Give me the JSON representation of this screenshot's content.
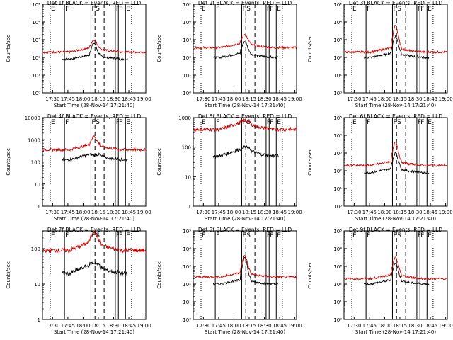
{
  "chart_data": [
    {
      "type": "line",
      "title": "Det 1f BLACK = Events, RED = LLD",
      "xlabel": "Start Time (28-Nov-14 17:21:40)",
      "ylabel": "Counts/sec",
      "ylim_exp": [
        0,
        5
      ],
      "yscale": "log",
      "series": [
        {
          "name": "Events",
          "color": "#000000",
          "base": 1.9,
          "peak": 2.8
        },
        {
          "name": "LLD",
          "color": "#cc0000",
          "base": 2.3,
          "peak": 3.0
        }
      ]
    },
    {
      "type": "line",
      "title": "Det 2f BLACK = Events, RED = LLD",
      "xlabel": "Start Time (28-Nov-14 17:21:40)",
      "ylabel": "Counts/sec",
      "ylim_exp": [
        0,
        5
      ],
      "yscale": "log",
      "series": [
        {
          "name": "Events",
          "color": "#000000",
          "base": 2.0,
          "peak": 2.9
        },
        {
          "name": "LLD",
          "color": "#cc0000",
          "base": 2.55,
          "peak": 3.3
        }
      ]
    },
    {
      "type": "line",
      "title": "Det 3f BLACK = Events, RED = LLD",
      "xlabel": "Start Time (28-Nov-14 17:21:40)",
      "ylabel": "Counts/sec",
      "ylim_exp": [
        0,
        5
      ],
      "yscale": "log",
      "series": [
        {
          "name": "Events",
          "color": "#000000",
          "base": 2.0,
          "peak": 3.2
        },
        {
          "name": "LLD",
          "color": "#cc0000",
          "base": 2.3,
          "peak": 3.8
        }
      ]
    },
    {
      "type": "line",
      "title": "Det 4f BLACK = Events, RED = LLD",
      "xlabel": "Start Time (28-Nov-14 17:21:40)",
      "ylabel": "Counts/sec",
      "ylim_exp": [
        0,
        4
      ],
      "yscale": "log",
      "ytick_labels": [
        "1",
        "10",
        "100",
        "1000",
        "10000"
      ],
      "series": [
        {
          "name": "Events",
          "color": "#000000",
          "base": 2.1,
          "peak": 2.3
        },
        {
          "name": "LLD",
          "color": "#cc0000",
          "base": 2.55,
          "peak": 3.15
        }
      ]
    },
    {
      "type": "line",
      "title": "Det 5f BLACK = Events, RED = LLD",
      "xlabel": "Start Time (28-Nov-14 17:21:40)",
      "ylabel": "Counts/sec",
      "ylim_exp": [
        0,
        3
      ],
      "yscale": "log",
      "ytick_labels": [
        "1",
        "10",
        "100",
        "1000"
      ],
      "series": [
        {
          "name": "Events",
          "color": "#000000",
          "base": 1.7,
          "peak": 2.0
        },
        {
          "name": "LLD",
          "color": "#cc0000",
          "base": 2.6,
          "peak": 2.9
        }
      ]
    },
    {
      "type": "line",
      "title": "Det 6f BLACK = Events, RED = LLD",
      "xlabel": "Start Time (28-Nov-14 17:21:40)",
      "ylabel": "Counts/sec",
      "ylim_exp": [
        0,
        5
      ],
      "yscale": "log",
      "series": [
        {
          "name": "Events",
          "color": "#000000",
          "base": 1.9,
          "peak": 3.0
        },
        {
          "name": "LLD",
          "color": "#cc0000",
          "base": 2.3,
          "peak": 3.6
        }
      ]
    },
    {
      "type": "line",
      "title": "Det 7f BLACK = Events, RED = LLD",
      "xlabel": "Start Time (28-Nov-14 17:21:40)",
      "ylabel": "Counts/sec",
      "ylim_exp": [
        0,
        2.5
      ],
      "yscale": "log",
      "ytick_labels": [
        "1",
        "10",
        "100"
      ],
      "series": [
        {
          "name": "Events",
          "color": "#000000",
          "base": 1.3,
          "peak": 1.6
        },
        {
          "name": "LLD",
          "color": "#cc0000",
          "base": 1.95,
          "peak": 2.5
        }
      ]
    },
    {
      "type": "line",
      "title": "Det 8f BLACK = Events, RED = LLD",
      "xlabel": "Start Time (28-Nov-14 17:21:40)",
      "ylabel": "Counts/sec",
      "ylim_exp": [
        0,
        5
      ],
      "yscale": "log",
      "series": [
        {
          "name": "Events",
          "color": "#000000",
          "base": 2.0,
          "peak": 3.5
        },
        {
          "name": "LLD",
          "color": "#cc0000",
          "base": 2.4,
          "peak": 3.6
        }
      ]
    },
    {
      "type": "line",
      "title": "Det 9f BLACK = Events, RED = LLD",
      "xlabel": "Start Time (28-Nov-14 17:21:40)",
      "ylabel": "Counts/sec",
      "ylim_exp": [
        0,
        5
      ],
      "yscale": "log",
      "series": [
        {
          "name": "Events",
          "color": "#000000",
          "base": 2.0,
          "peak": 3.2
        },
        {
          "name": "LLD",
          "color": "#cc0000",
          "base": 2.3,
          "peak": 3.5
        }
      ]
    }
  ],
  "x_tick_labels": [
    "17:30",
    "17:45",
    "18:00",
    "18:15",
    "18:30",
    "18:45",
    "19:00"
  ],
  "x_ticks_min": [
    -11.67,
    3.33,
    18.33,
    33.33,
    48.33,
    63.33,
    78.33
  ],
  "x_range_min": [
    -21.67,
    80
  ],
  "markers": [
    {
      "label": "E",
      "x": -14,
      "style": "dotted"
    },
    {
      "label": "F",
      "x": 0,
      "style": "solid"
    },
    {
      "label": "F",
      "x": 26,
      "style": "solid"
    },
    {
      "label": "S",
      "x": 30,
      "style": "dashed"
    },
    {
      "label": "",
      "x": 39,
      "style": "dashed"
    },
    {
      "label": "F",
      "x": 50,
      "style": "solid"
    },
    {
      "label": "F",
      "x": 53,
      "style": "solid"
    },
    {
      "label": "E",
      "x": 60,
      "style": "solid"
    },
    {
      "label": "",
      "x": 66,
      "style": "dotted"
    }
  ]
}
